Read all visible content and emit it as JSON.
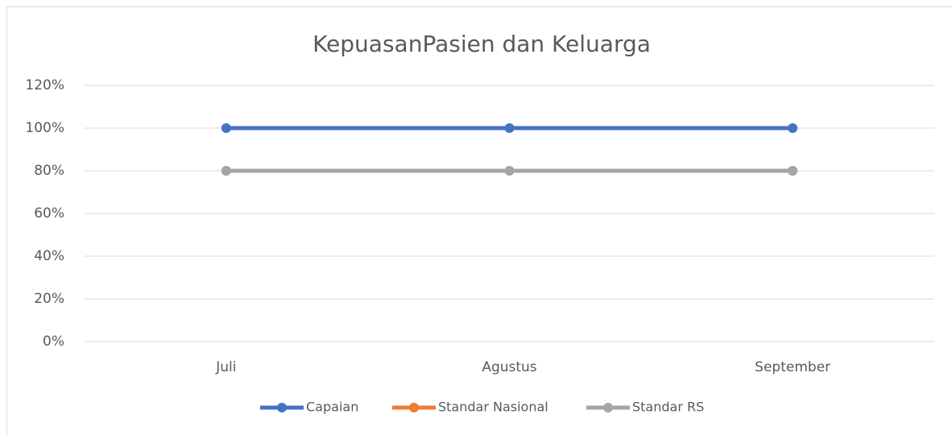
{
  "chart_data": {
    "type": "line",
    "title": "KepuasanPasien dan Keluarga",
    "categories": [
      "Juli",
      "Agustus",
      "September"
    ],
    "series": [
      {
        "name": "Capaian",
        "color": "#4472c4",
        "values": [
          100,
          100,
          100
        ]
      },
      {
        "name": "Standar Nasional",
        "color": "#ed7d31",
        "values": [
          80,
          80,
          80
        ]
      },
      {
        "name": "Standar RS",
        "color": "#a5a5a5",
        "values": [
          80,
          80,
          80
        ]
      }
    ],
    "ylim": [
      0,
      120
    ],
    "yticks": [
      {
        "value": 0,
        "label": "0%"
      },
      {
        "value": 20,
        "label": "20%"
      },
      {
        "value": 40,
        "label": "40%"
      },
      {
        "value": 60,
        "label": "60%"
      },
      {
        "value": 80,
        "label": "80%"
      },
      {
        "value": 100,
        "label": "100%"
      },
      {
        "value": 120,
        "label": "120%"
      }
    ],
    "grid": true,
    "legend": "bottom"
  }
}
